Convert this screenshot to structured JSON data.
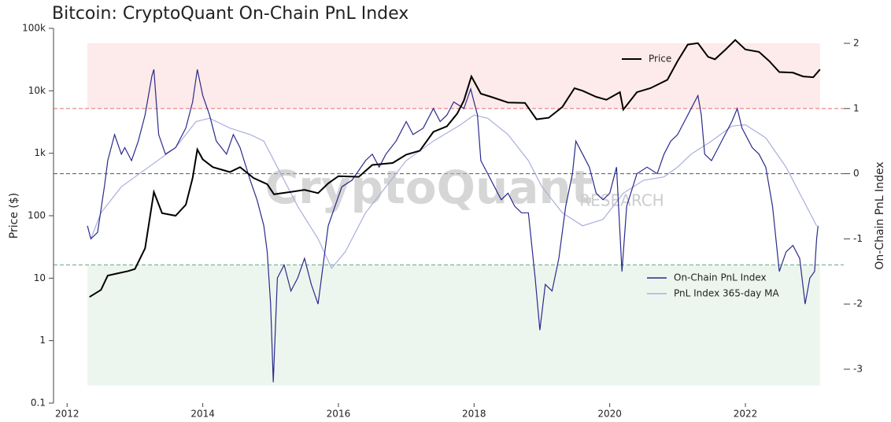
{
  "chart_data": {
    "type": "line",
    "title": "Bitcoin: CryptoQuant On-Chain PnL Index",
    "watermark": "CryptoQuant",
    "watermark_sub": "RESEARCH",
    "y_label": "Price ($)",
    "y2_label": "On-Chain PnL Index",
    "xlim": [
      2011.8,
      2023.45
    ],
    "xticks": [
      2012,
      2014,
      2016,
      2018,
      2020,
      2022
    ],
    "yscale": "log",
    "ylim": [
      0.1,
      100000
    ],
    "yticks": [
      0.1,
      1,
      10,
      100,
      {
        "value": 1000,
        "label": "1k"
      },
      {
        "value": 10000,
        "label": "10k"
      },
      {
        "value": 100000,
        "label": "100k"
      }
    ],
    "y2lim": [
      -3.52,
      2.23
    ],
    "y2ticks": [
      -3,
      -2,
      -1,
      0,
      1,
      2
    ],
    "grid": false,
    "bands": [
      {
        "from": 1,
        "to": 2,
        "color": "#fdeaea"
      },
      {
        "from": -3.25,
        "to": -1.4,
        "color": "#edf6ee"
      }
    ],
    "reference_lines": [
      {
        "value": 1,
        "color": "#e07070"
      },
      {
        "value": 0,
        "color": "#555555"
      },
      {
        "value": -1.4,
        "color": "#66aa88"
      }
    ],
    "series": [
      {
        "name": "Price",
        "color": "#000000",
        "axis": "y",
        "x": [
          2012.33,
          2012.5,
          2012.6,
          2012.75,
          2012.9,
          2013.0,
          2013.15,
          2013.28,
          2013.4,
          2013.6,
          2013.75,
          2013.85,
          2013.92,
          2014.0,
          2014.15,
          2014.4,
          2014.55,
          2014.75,
          2014.95,
          2015.05,
          2015.3,
          2015.5,
          2015.7,
          2015.85,
          2016.0,
          2016.3,
          2016.5,
          2016.8,
          2017.0,
          2017.2,
          2017.4,
          2017.6,
          2017.75,
          2017.85,
          2017.96,
          2018.1,
          2018.25,
          2018.5,
          2018.75,
          2018.92,
          2019.1,
          2019.3,
          2019.48,
          2019.6,
          2019.8,
          2019.95,
          2020.15,
          2020.2,
          2020.4,
          2020.6,
          2020.85,
          2021.0,
          2021.15,
          2021.3,
          2021.45,
          2021.55,
          2021.7,
          2021.85,
          2022.0,
          2022.2,
          2022.35,
          2022.5,
          2022.7,
          2022.85,
          2023.0,
          2023.1
        ],
        "values": [
          5,
          6.5,
          11,
          12,
          13,
          14,
          30,
          240,
          110,
          100,
          150,
          400,
          1150,
          800,
          600,
          500,
          600,
          400,
          320,
          220,
          240,
          260,
          230,
          330,
          430,
          420,
          650,
          700,
          950,
          1100,
          2200,
          2700,
          4300,
          7000,
          17000,
          9000,
          8000,
          6500,
          6400,
          3500,
          3700,
          5500,
          11000,
          10000,
          8000,
          7200,
          9500,
          5000,
          9500,
          11000,
          15000,
          30000,
          55000,
          58000,
          35000,
          32000,
          45000,
          65000,
          46000,
          42000,
          30000,
          20000,
          19500,
          17000,
          16500,
          22000
        ]
      },
      {
        "name": "On-Chain PnL Index",
        "color": "#2a2a8c",
        "axis": "y2",
        "x": [
          2012.3,
          2012.35,
          2012.45,
          2012.55,
          2012.6,
          2012.7,
          2012.8,
          2012.85,
          2012.95,
          2013.05,
          2013.15,
          2013.25,
          2013.28,
          2013.35,
          2013.45,
          2013.6,
          2013.75,
          2013.85,
          2013.92,
          2014.0,
          2014.1,
          2014.2,
          2014.35,
          2014.45,
          2014.55,
          2014.7,
          2014.8,
          2014.9,
          2014.95,
          2015.0,
          2015.04,
          2015.1,
          2015.2,
          2015.3,
          2015.4,
          2015.5,
          2015.6,
          2015.7,
          2015.8,
          2015.85,
          2015.95,
          2016.05,
          2016.2,
          2016.4,
          2016.5,
          2016.6,
          2016.7,
          2016.85,
          2017.0,
          2017.1,
          2017.25,
          2017.4,
          2017.5,
          2017.6,
          2017.7,
          2017.85,
          2017.95,
          2018.05,
          2018.1,
          2018.2,
          2018.3,
          2018.4,
          2018.5,
          2018.6,
          2018.7,
          2018.8,
          2018.9,
          2018.97,
          2019.05,
          2019.15,
          2019.25,
          2019.35,
          2019.45,
          2019.5,
          2019.6,
          2019.7,
          2019.8,
          2019.9,
          2020.0,
          2020.1,
          2020.18,
          2020.25,
          2020.4,
          2020.55,
          2020.7,
          2020.8,
          2020.9,
          2021.0,
          2021.1,
          2021.2,
          2021.3,
          2021.35,
          2021.4,
          2021.5,
          2021.6,
          2021.7,
          2021.8,
          2021.88,
          2021.95,
          2022.1,
          2022.2,
          2022.3,
          2022.4,
          2022.45,
          2022.5,
          2022.6,
          2022.7,
          2022.8,
          2022.88,
          2022.95,
          2023.02,
          2023.05,
          2023.07
        ],
        "values": [
          -0.8,
          -1.0,
          -0.9,
          -0.2,
          0.2,
          0.6,
          0.3,
          0.4,
          0.2,
          0.5,
          0.9,
          1.5,
          1.6,
          0.6,
          0.3,
          0.4,
          0.7,
          1.1,
          1.6,
          1.2,
          0.9,
          0.5,
          0.3,
          0.6,
          0.4,
          -0.1,
          -0.4,
          -0.8,
          -1.2,
          -2.0,
          -3.2,
          -1.6,
          -1.4,
          -1.8,
          -1.6,
          -1.3,
          -1.7,
          -2.0,
          -1.2,
          -0.8,
          -0.5,
          -0.2,
          -0.1,
          0.2,
          0.3,
          0.1,
          0.3,
          0.5,
          0.8,
          0.6,
          0.7,
          1.0,
          0.8,
          0.9,
          1.1,
          1.0,
          1.3,
          0.9,
          0.2,
          0.0,
          -0.2,
          -0.4,
          -0.3,
          -0.5,
          -0.6,
          -0.6,
          -1.6,
          -2.4,
          -1.7,
          -1.8,
          -1.3,
          -0.5,
          0.0,
          0.5,
          0.3,
          0.1,
          -0.3,
          -0.4,
          -0.3,
          0.1,
          -1.5,
          -0.5,
          0.0,
          0.1,
          0.0,
          0.3,
          0.5,
          0.6,
          0.8,
          1.0,
          1.2,
          0.9,
          0.3,
          0.2,
          0.4,
          0.6,
          0.8,
          1.0,
          0.7,
          0.4,
          0.3,
          0.1,
          -0.5,
          -1.0,
          -1.5,
          -1.2,
          -1.1,
          -1.3,
          -2.0,
          -1.6,
          -1.5,
          -1.0,
          -0.8
        ]
      },
      {
        "name": "PnL Index 365-day MA",
        "color": "#a9aee0",
        "axis": "y2",
        "x": [
          2012.35,
          2012.5,
          2012.8,
          2013.2,
          2013.6,
          2013.9,
          2014.1,
          2014.4,
          2014.7,
          2014.9,
          2015.1,
          2015.4,
          2015.7,
          2015.9,
          2016.1,
          2016.4,
          2016.7,
          2017.0,
          2017.4,
          2017.8,
          2018.0,
          2018.2,
          2018.5,
          2018.8,
          2019.0,
          2019.3,
          2019.6,
          2019.9,
          2020.2,
          2020.5,
          2020.8,
          2021.0,
          2021.2,
          2021.5,
          2021.8,
          2022.0,
          2022.3,
          2022.6,
          2022.9,
          2023.05
        ],
        "values": [
          -1.0,
          -0.6,
          -0.2,
          0.1,
          0.4,
          0.8,
          0.85,
          0.7,
          0.6,
          0.5,
          0.1,
          -0.5,
          -1.0,
          -1.45,
          -1.2,
          -0.6,
          -0.2,
          0.2,
          0.5,
          0.75,
          0.9,
          0.85,
          0.6,
          0.2,
          -0.2,
          -0.6,
          -0.8,
          -0.7,
          -0.3,
          -0.1,
          -0.05,
          0.1,
          0.3,
          0.5,
          0.73,
          0.75,
          0.55,
          0.1,
          -0.5,
          -0.8
        ]
      }
    ]
  }
}
